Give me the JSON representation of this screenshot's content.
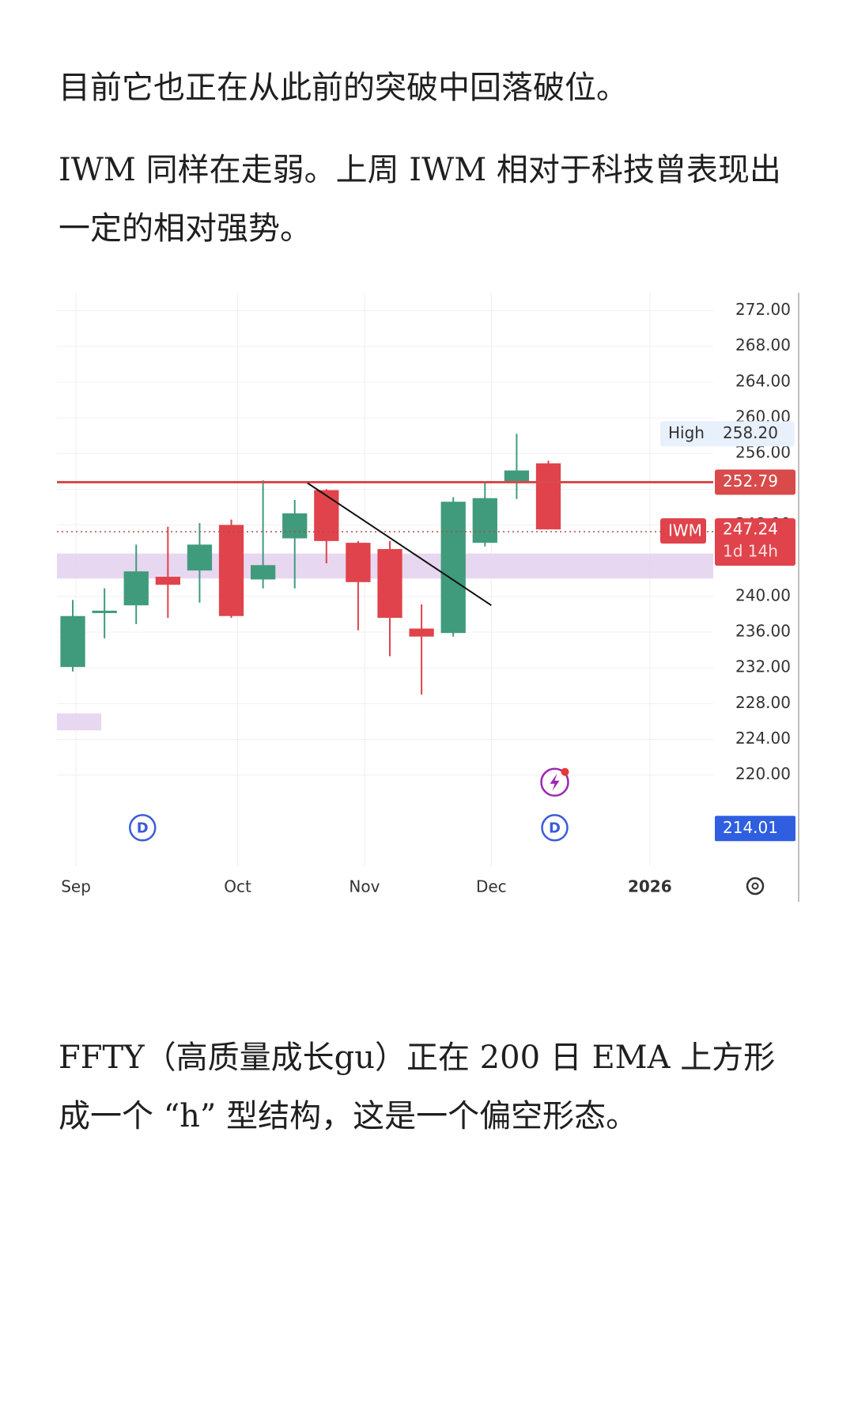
{
  "article": {
    "p1": "目前它也正在从此前的突破中回落破位。",
    "p2": "IWM 同样在走弱。上周 IWM 相对于科技曾表现出一定的相对强势。",
    "p3": "FFTY（高质量成长gu）正在 200 日 EMA 上方形成一个 “h” 型结构，这是一个偏空形态。"
  },
  "colors": {
    "up": "#3f9b7b",
    "down": "#e0434b",
    "resistance": "#d94a4a",
    "zone": "#e6d3ee",
    "grid": "#f0f0f0",
    "axis_text": "#333333",
    "high_label_bg": "#e8f1fb",
    "current_label_bg": "#e0434b",
    "last_label_bg": "#2f5fe0",
    "event_icon": "#3b5bdb",
    "lightning_icon": "#9c27b0"
  },
  "chart_data": {
    "type": "candlestick",
    "symbol": "IWM",
    "ylim": [
      212,
      274
    ],
    "y_ticks": [
      "272.00",
      "268.00",
      "264.00",
      "260.00",
      "256.00",
      "252.00",
      "248.00",
      "244.00",
      "240.00",
      "236.00",
      "232.00",
      "228.00",
      "224.00",
      "220.00"
    ],
    "x_ticks": [
      {
        "label": "Sep",
        "x": 0.1
      },
      {
        "label": "Oct",
        "x": 5.2
      },
      {
        "label": "Nov",
        "x": 9.2
      },
      {
        "label": "Dec",
        "x": 13.2
      },
      {
        "label": "2026",
        "x": 18.2,
        "bold": true
      }
    ],
    "candles": [
      {
        "o": 232.1,
        "h": 239.6,
        "l": 231.6,
        "c": 237.8
      },
      {
        "o": 238.2,
        "h": 240.9,
        "l": 235.3,
        "c": 238.4
      },
      {
        "o": 239.0,
        "h": 245.8,
        "l": 236.9,
        "c": 242.8
      },
      {
        "o": 242.2,
        "h": 247.8,
        "l": 237.6,
        "c": 241.3
      },
      {
        "o": 242.9,
        "h": 248.2,
        "l": 239.3,
        "c": 245.8
      },
      {
        "o": 248.0,
        "h": 248.6,
        "l": 237.6,
        "c": 237.8
      },
      {
        "o": 241.9,
        "h": 253.0,
        "l": 240.9,
        "c": 243.5
      },
      {
        "o": 246.5,
        "h": 250.8,
        "l": 240.9,
        "c": 249.3
      },
      {
        "o": 251.9,
        "h": 252.0,
        "l": 243.7,
        "c": 246.2
      },
      {
        "o": 246.0,
        "h": 246.2,
        "l": 236.2,
        "c": 241.6
      },
      {
        "o": 245.3,
        "h": 246.2,
        "l": 233.3,
        "c": 237.6
      },
      {
        "o": 236.4,
        "h": 239.1,
        "l": 229.0,
        "c": 235.5
      },
      {
        "o": 235.9,
        "h": 251.1,
        "l": 235.5,
        "c": 250.6
      },
      {
        "o": 246.0,
        "h": 252.9,
        "l": 245.6,
        "c": 251.0
      },
      {
        "o": 252.9,
        "h": 258.2,
        "l": 250.9,
        "c": 254.1
      },
      {
        "o": 254.9,
        "h": 255.2,
        "l": 247.5,
        "c": 247.5
      }
    ],
    "resistance_level": 252.79,
    "current_price": 247.24,
    "high": 258.2,
    "last_label_value": 214.01,
    "trendline": [
      {
        "x": 7.4,
        "y": 252.7
      },
      {
        "x": 13.2,
        "y": 239.0
      }
    ],
    "zones": [
      {
        "x0": -0.5,
        "x1": 20.2,
        "y0": 242.0,
        "y1": 244.8
      },
      {
        "x0": -0.5,
        "x1": 0.9,
        "y0": 225.0,
        "y1": 226.9
      }
    ],
    "labels": {
      "high_name": "High",
      "high_value": "258.20",
      "resistance_value": "252.79",
      "current_name": "IWM",
      "current_value": "247.24",
      "countdown": "1d 14h",
      "last_value": "214.01"
    },
    "events": [
      {
        "x": 2.2,
        "glyph": "D"
      },
      {
        "x": 15.2,
        "glyph": "D"
      }
    ],
    "alert": {
      "x": 15.2
    },
    "x_range": [
      -0.5,
      20.2
    ]
  }
}
